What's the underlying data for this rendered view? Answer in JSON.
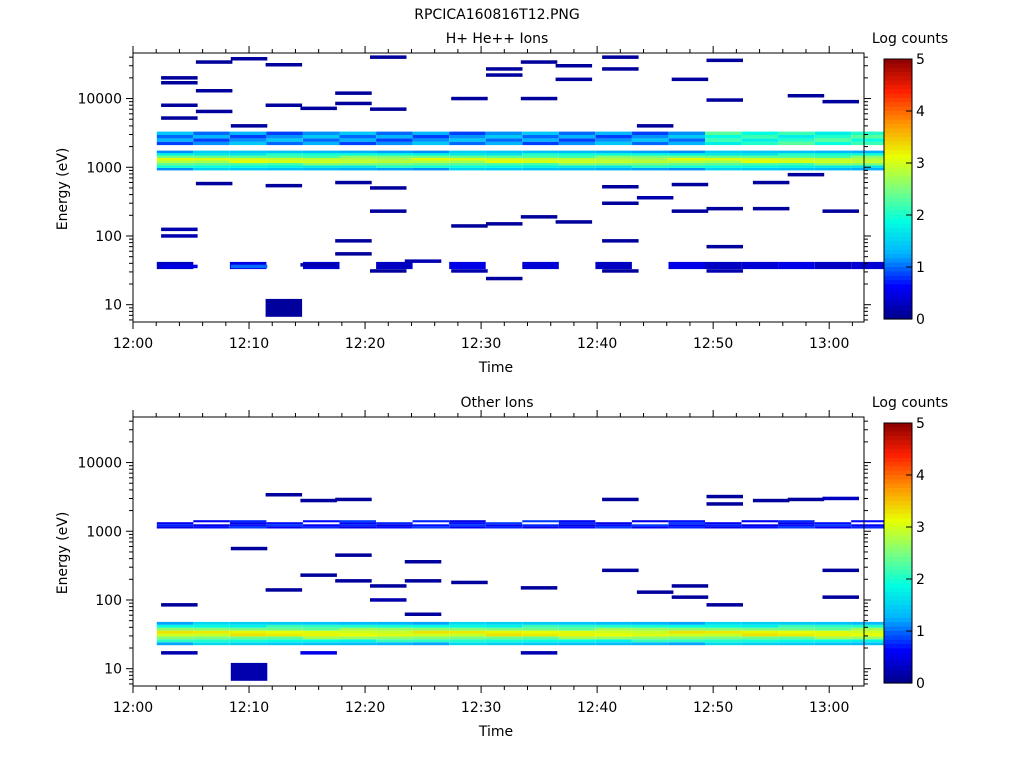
{
  "page_title": "RPCICA160816T12.PNG",
  "colors": {
    "colormap": [
      "#00008a",
      "#0000ff",
      "#00b4ff",
      "#00ffe0",
      "#7dff7d",
      "#e8ff00",
      "#ff9600",
      "#ff2000",
      "#8a0000"
    ]
  },
  "chart_data": [
    {
      "type": "heatmap",
      "title": "H+ He++ Ions",
      "xlabel": "Time",
      "ylabel": "Energy (eV)",
      "y_scale": "log",
      "ylim": [
        5.6,
        46000
      ],
      "xlim": [
        "12:00",
        "13:03"
      ],
      "x_ticks": [
        "12:00",
        "12:10",
        "12:20",
        "12:30",
        "12:40",
        "12:50",
        "13:00"
      ],
      "y_ticks": [
        "10",
        "100",
        "1000",
        "10000"
      ],
      "colorbar": {
        "label": "Log counts",
        "range": [
          0,
          5
        ],
        "ticks": [
          "0",
          "1",
          "2",
          "3",
          "4",
          "5"
        ]
      },
      "time_bins": [
        "12:02",
        "12:05",
        "12:08",
        "12:11",
        "12:15",
        "12:18",
        "12:21",
        "12:24",
        "12:27",
        "12:31",
        "12:34",
        "12:37",
        "12:40",
        "12:44",
        "12:47",
        "12:50",
        "12:53",
        "12:56",
        "12:59",
        "13:02"
      ],
      "main_band": {
        "energy_range": [
          900,
          1750
        ],
        "core_log_counts": 2.9
      },
      "secondary_band": {
        "energy_range": [
          2100,
          3300
        ],
        "log_counts": 1.2
      },
      "sparse_counts": [
        {
          "time": "12:04",
          "energy": 20000,
          "log_counts": 0.1
        },
        {
          "time": "12:04",
          "energy": 17000,
          "log_counts": 0.1
        },
        {
          "time": "12:04",
          "energy": 8000,
          "log_counts": 0.1
        },
        {
          "time": "12:04",
          "energy": 5200,
          "log_counts": 0.1
        },
        {
          "time": "12:04",
          "energy": 125,
          "log_counts": 0.2
        },
        {
          "time": "12:04",
          "energy": 100,
          "log_counts": 0.2
        },
        {
          "time": "12:04",
          "energy": 36,
          "log_counts": 0.5
        },
        {
          "time": "12:07",
          "energy": 34000,
          "log_counts": 0.1
        },
        {
          "time": "12:07",
          "energy": 13000,
          "log_counts": 0.1
        },
        {
          "time": "12:07",
          "energy": 6500,
          "log_counts": 0.1
        },
        {
          "time": "12:07",
          "energy": 580,
          "log_counts": 0.1
        },
        {
          "time": "12:10",
          "energy": 38000,
          "log_counts": 0.1
        },
        {
          "time": "12:10",
          "energy": 4000,
          "log_counts": 0.1
        },
        {
          "time": "12:10",
          "energy": 36,
          "log_counts": 1.0
        },
        {
          "time": "12:13",
          "energy": 31000,
          "log_counts": 0.1
        },
        {
          "time": "12:13",
          "energy": 8000,
          "log_counts": 0.1
        },
        {
          "time": "12:13",
          "energy": 540,
          "log_counts": 0.1
        },
        {
          "time": "12:13",
          "energy": 9,
          "log_counts": 0.1
        },
        {
          "time": "12:16",
          "energy": 7200,
          "log_counts": 0.1
        },
        {
          "time": "12:16",
          "energy": 38,
          "log_counts": 0.2
        },
        {
          "time": "12:19",
          "energy": 12000,
          "log_counts": 0.1
        },
        {
          "time": "12:19",
          "energy": 8500,
          "log_counts": 0.1
        },
        {
          "time": "12:19",
          "energy": 600,
          "log_counts": 0.1
        },
        {
          "time": "12:19",
          "energy": 85,
          "log_counts": 0.1
        },
        {
          "time": "12:19",
          "energy": 55,
          "log_counts": 0.1
        },
        {
          "time": "12:22",
          "energy": 40000,
          "log_counts": 0.1
        },
        {
          "time": "12:22",
          "energy": 7000,
          "log_counts": 0.1
        },
        {
          "time": "12:22",
          "energy": 500,
          "log_counts": 0.1
        },
        {
          "time": "12:22",
          "energy": 230,
          "log_counts": 0.1
        },
        {
          "time": "12:22",
          "energy": 31,
          "log_counts": 0.1
        },
        {
          "time": "12:25",
          "energy": 43,
          "log_counts": 0.2
        },
        {
          "time": "12:29",
          "energy": 10000,
          "log_counts": 0.1
        },
        {
          "time": "12:29",
          "energy": 140,
          "log_counts": 0.1
        },
        {
          "time": "12:29",
          "energy": 31,
          "log_counts": 0.2
        },
        {
          "time": "12:32",
          "energy": 27000,
          "log_counts": 0.1
        },
        {
          "time": "12:32",
          "energy": 22000,
          "log_counts": 0.1
        },
        {
          "time": "12:32",
          "energy": 150,
          "log_counts": 0.1
        },
        {
          "time": "12:32",
          "energy": 24,
          "log_counts": 0.1
        },
        {
          "time": "12:35",
          "energy": 34000,
          "log_counts": 0.1
        },
        {
          "time": "12:35",
          "energy": 10000,
          "log_counts": 0.1
        },
        {
          "time": "12:35",
          "energy": 190,
          "log_counts": 0.1
        },
        {
          "time": "12:38",
          "energy": 30000,
          "log_counts": 0.1
        },
        {
          "time": "12:38",
          "energy": 19000,
          "log_counts": 0.1
        },
        {
          "time": "12:38",
          "energy": 160,
          "log_counts": 0.1
        },
        {
          "time": "12:42",
          "energy": 40000,
          "log_counts": 0.1
        },
        {
          "time": "12:42",
          "energy": 27000,
          "log_counts": 0.1
        },
        {
          "time": "12:42",
          "energy": 520,
          "log_counts": 0.1
        },
        {
          "time": "12:42",
          "energy": 300,
          "log_counts": 0.1
        },
        {
          "time": "12:42",
          "energy": 85,
          "log_counts": 0.1
        },
        {
          "time": "12:42",
          "energy": 31,
          "log_counts": 0.1
        },
        {
          "time": "12:45",
          "energy": 4000,
          "log_counts": 0.1
        },
        {
          "time": "12:45",
          "energy": 360,
          "log_counts": 0.2
        },
        {
          "time": "12:48",
          "energy": 19000,
          "log_counts": 0.1
        },
        {
          "time": "12:48",
          "energy": 560,
          "log_counts": 0.1
        },
        {
          "time": "12:48",
          "energy": 230,
          "log_counts": 0.1
        },
        {
          "time": "12:51",
          "energy": 36000,
          "log_counts": 0.1
        },
        {
          "time": "12:51",
          "energy": 9500,
          "log_counts": 0.1
        },
        {
          "time": "12:51",
          "energy": 250,
          "log_counts": 0.1
        },
        {
          "time": "12:51",
          "energy": 70,
          "log_counts": 0.1
        },
        {
          "time": "12:51",
          "energy": 31,
          "log_counts": 0.2
        },
        {
          "time": "12:55",
          "energy": 600,
          "log_counts": 0.1
        },
        {
          "time": "12:55",
          "energy": 250,
          "log_counts": 0.1
        },
        {
          "time": "12:58",
          "energy": 11000,
          "log_counts": 0.1
        },
        {
          "time": "12:58",
          "energy": 780,
          "log_counts": 0.1
        },
        {
          "time": "13:01",
          "energy": 9000,
          "log_counts": 0.1
        },
        {
          "time": "13:01",
          "energy": 230,
          "log_counts": 0.1
        }
      ],
      "low_energy_band": {
        "energy_range": [
          33,
          42
        ],
        "log_counts": 0.3
      }
    },
    {
      "type": "heatmap",
      "title": "Other Ions",
      "xlabel": "Time",
      "ylabel": "Energy (eV)",
      "y_scale": "log",
      "ylim": [
        5.6,
        46000
      ],
      "xlim": [
        "12:00",
        "13:03"
      ],
      "x_ticks": [
        "12:00",
        "12:10",
        "12:20",
        "12:30",
        "12:40",
        "12:50",
        "13:00"
      ],
      "y_ticks": [
        "10",
        "100",
        "1000",
        "10000"
      ],
      "colorbar": {
        "label": "Log counts",
        "range": [
          0,
          5
        ],
        "ticks": [
          "0",
          "1",
          "2",
          "3",
          "4",
          "5"
        ]
      },
      "main_band": {
        "energy_range": [
          22,
          48
        ],
        "core_log_counts": 3.1
      },
      "secondary_band": {
        "energy_range": [
          1100,
          1450
        ],
        "log_counts": 0.7
      },
      "sparse_counts": [
        {
          "time": "12:04",
          "energy": 85,
          "log_counts": 0.1
        },
        {
          "time": "12:04",
          "energy": 17,
          "log_counts": 0.2
        },
        {
          "time": "12:10",
          "energy": 560,
          "log_counts": 0.1
        },
        {
          "time": "12:10",
          "energy": 9,
          "log_counts": 0.2
        },
        {
          "time": "12:13",
          "energy": 3400,
          "log_counts": 0.1
        },
        {
          "time": "12:13",
          "energy": 140,
          "log_counts": 0.1
        },
        {
          "time": "12:16",
          "energy": 2800,
          "log_counts": 0.1
        },
        {
          "time": "12:16",
          "energy": 230,
          "log_counts": 0.1
        },
        {
          "time": "12:16",
          "energy": 17,
          "log_counts": 0.5
        },
        {
          "time": "12:19",
          "energy": 2900,
          "log_counts": 0.1
        },
        {
          "time": "12:19",
          "energy": 450,
          "log_counts": 0.1
        },
        {
          "time": "12:19",
          "energy": 190,
          "log_counts": 0.1
        },
        {
          "time": "12:22",
          "energy": 160,
          "log_counts": 0.1
        },
        {
          "time": "12:22",
          "energy": 100,
          "log_counts": 0.2
        },
        {
          "time": "12:25",
          "energy": 360,
          "log_counts": 0.1
        },
        {
          "time": "12:25",
          "energy": 190,
          "log_counts": 0.1
        },
        {
          "time": "12:25",
          "energy": 62,
          "log_counts": 0.1
        },
        {
          "time": "12:29",
          "energy": 180,
          "log_counts": 0.1
        },
        {
          "time": "12:35",
          "energy": 150,
          "log_counts": 0.1
        },
        {
          "time": "12:35",
          "energy": 17,
          "log_counts": 0.2
        },
        {
          "time": "12:42",
          "energy": 2900,
          "log_counts": 0.1
        },
        {
          "time": "12:42",
          "energy": 270,
          "log_counts": 0.1
        },
        {
          "time": "12:45",
          "energy": 130,
          "log_counts": 0.1
        },
        {
          "time": "12:48",
          "energy": 160,
          "log_counts": 0.1
        },
        {
          "time": "12:48",
          "energy": 110,
          "log_counts": 0.1
        },
        {
          "time": "12:51",
          "energy": 3200,
          "log_counts": 0.1
        },
        {
          "time": "12:51",
          "energy": 2500,
          "log_counts": 0.1
        },
        {
          "time": "12:51",
          "energy": 85,
          "log_counts": 0.1
        },
        {
          "time": "12:55",
          "energy": 2800,
          "log_counts": 0.1
        },
        {
          "time": "12:58",
          "energy": 2900,
          "log_counts": 0.1
        },
        {
          "time": "13:01",
          "energy": 3000,
          "log_counts": 0.3
        },
        {
          "time": "13:01",
          "energy": 270,
          "log_counts": 0.1
        },
        {
          "time": "13:01",
          "energy": 110,
          "log_counts": 0.1
        }
      ]
    }
  ]
}
